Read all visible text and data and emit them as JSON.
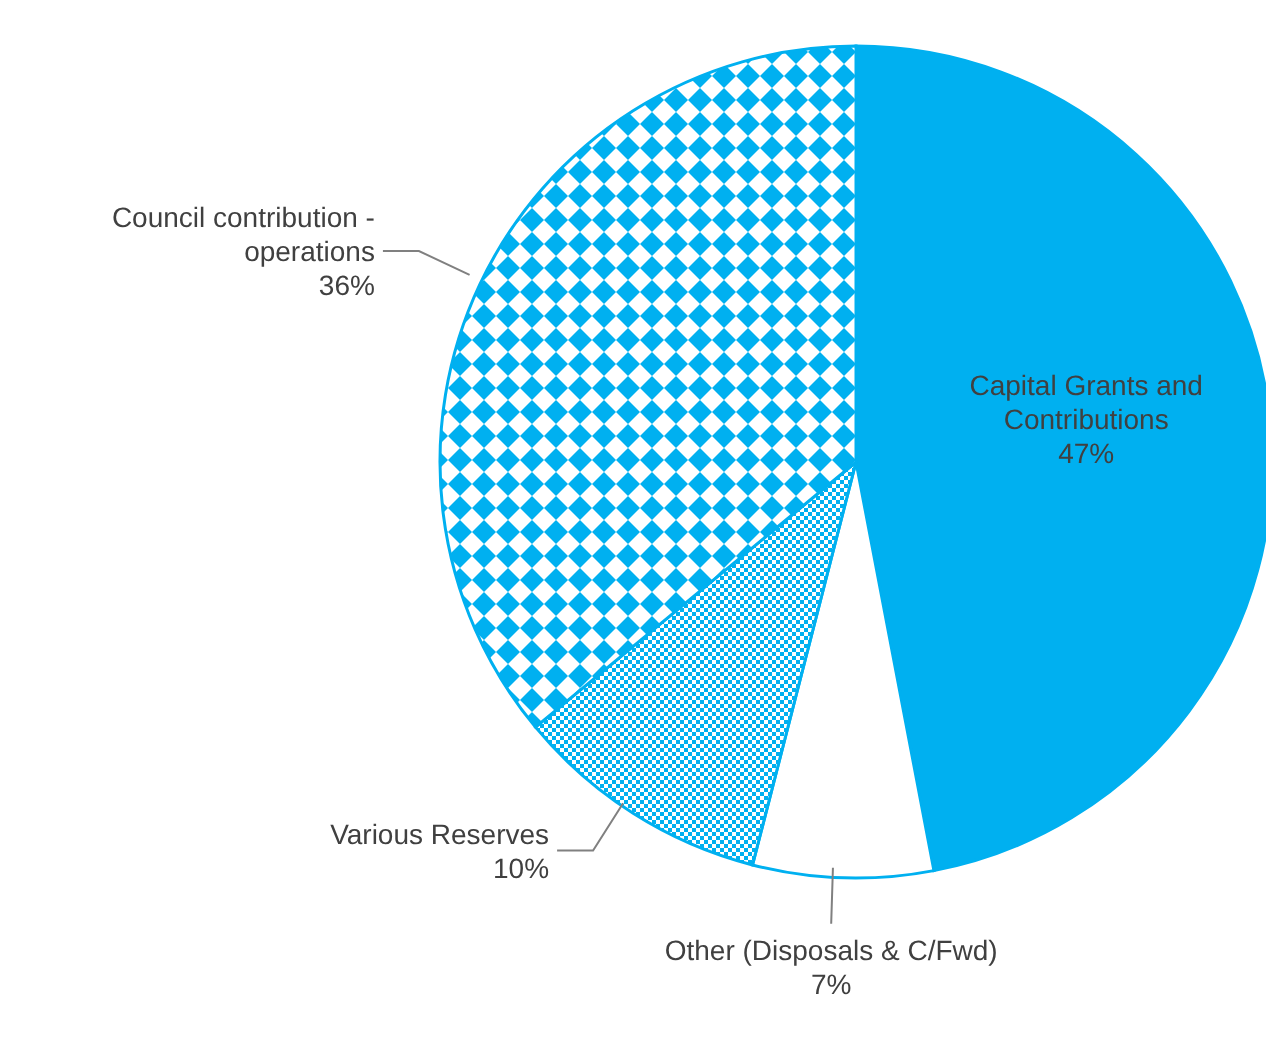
{
  "chart_data": {
    "type": "pie",
    "categories": [
      "Capital Grants and Contributions",
      "Other (Disposals & C/Fwd)",
      "Various Reserves",
      "Council contribution - operations"
    ],
    "values": [
      47,
      7,
      10,
      36
    ],
    "value_labels": [
      "47%",
      "7%",
      "10%",
      "36%"
    ],
    "colors": [
      "#00b0f0",
      "#ffffff",
      "#00b0f0",
      "#00b0f0"
    ]
  }
}
